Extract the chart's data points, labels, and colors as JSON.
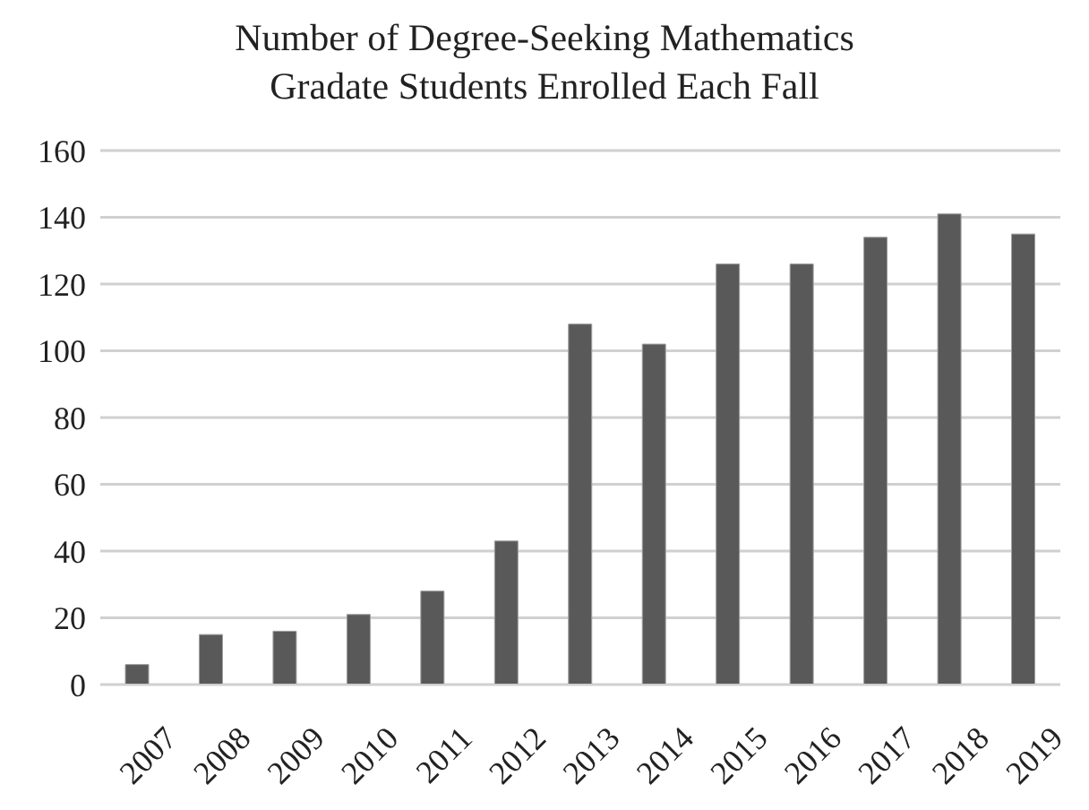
{
  "chart_data": {
    "type": "bar",
    "title": "Number of Degree-Seeking Mathematics\nGradate Students Enrolled Each Fall",
    "categories": [
      "2007",
      "2008",
      "2009",
      "2010",
      "2011",
      "2012",
      "2013",
      "2014",
      "2015",
      "2016",
      "2017",
      "2018",
      "2019"
    ],
    "values": [
      6,
      15,
      16,
      21,
      28,
      43,
      108,
      102,
      126,
      126,
      134,
      141,
      135
    ],
    "color": "#595959",
    "ylim": [
      0,
      160
    ],
    "yticks": [
      0,
      20,
      40,
      60,
      80,
      100,
      120,
      140,
      160
    ],
    "grid": "y"
  }
}
